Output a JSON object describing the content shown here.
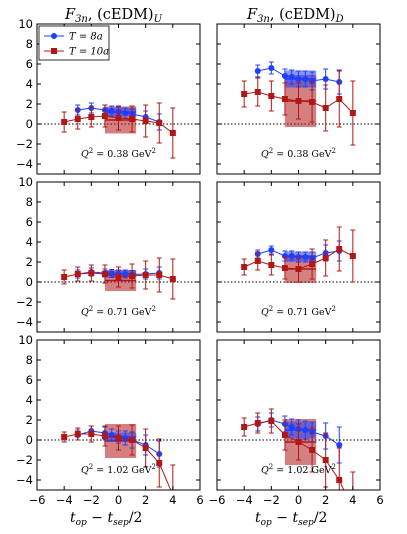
{
  "colors": {
    "T8": "#1f3fff",
    "T10": "#b01818"
  },
  "col_titles": [
    "F3n, (cEDM)U",
    "F3n, (cEDM)D"
  ],
  "xlabel": "top − tsep/2",
  "legend": [
    "T = 8a",
    "T = 10a"
  ],
  "chart_data": [
    {
      "type": "line",
      "row": 0,
      "col": 0,
      "annotation": "Q² = 0.38 GeV²",
      "xlim": [
        -6,
        6
      ],
      "ylim": [
        -5,
        10
      ],
      "series": [
        {
          "name": "T = 8a",
          "x": [
            -3,
            -2,
            -1,
            -0.5,
            0,
            0.5,
            1,
            2,
            3
          ],
          "y": [
            1.4,
            1.6,
            1.4,
            1.3,
            1.2,
            1.1,
            1.0,
            0.7,
            0.2
          ],
          "err": [
            0.5,
            0.5,
            0.5,
            0.5,
            0.5,
            0.5,
            0.5,
            0.6,
            0.8
          ]
        },
        {
          "name": "T = 10a",
          "x": [
            -4,
            -3,
            -2,
            -1,
            0,
            1,
            2,
            3,
            4
          ],
          "y": [
            0.2,
            0.5,
            0.7,
            0.8,
            0.6,
            0.5,
            0.3,
            0.1,
            -0.9
          ],
          "err": [
            1.0,
            1.0,
            1.0,
            1.1,
            1.2,
            1.3,
            1.6,
            2.0,
            2.5
          ]
        }
      ],
      "band_T8": {
        "x": [
          -1,
          1.3
        ],
        "y": 1.2,
        "h": 0.45
      },
      "band_T10": {
        "x": [
          -1,
          1.3
        ],
        "y": 0.4,
        "h": 1.35
      }
    },
    {
      "type": "line",
      "row": 0,
      "col": 1,
      "annotation": "Q² = 0.38 GeV²",
      "xlim": [
        -6,
        6
      ],
      "ylim": [
        -5,
        10
      ],
      "series": [
        {
          "name": "T = 8a",
          "x": [
            -3,
            -2,
            -1,
            -0.5,
            0,
            0.5,
            1,
            2,
            3
          ],
          "y": [
            5.3,
            5.6,
            4.8,
            4.7,
            4.5,
            4.5,
            4.3,
            4.5,
            4.2
          ],
          "err": [
            0.6,
            0.6,
            0.7,
            0.7,
            0.8,
            0.8,
            0.9,
            1.0,
            1.2
          ]
        },
        {
          "name": "T = 10a",
          "x": [
            -4,
            -3,
            -2,
            -1,
            0,
            1,
            2,
            3,
            4
          ],
          "y": [
            3.0,
            3.2,
            2.8,
            2.5,
            2.3,
            2.2,
            1.6,
            2.5,
            1.1
          ],
          "err": [
            1.3,
            1.4,
            1.5,
            1.6,
            1.8,
            2.0,
            2.3,
            2.8,
            3.2
          ]
        }
      ],
      "band_T8": {
        "x": [
          -1,
          1.3
        ],
        "y": 4.5,
        "h": 0.85
      },
      "band_T10": {
        "x": [
          -1,
          1.3
        ],
        "y": 2.3,
        "h": 2.6
      }
    },
    {
      "type": "line",
      "row": 1,
      "col": 0,
      "annotation": "Q² = 0.71 GeV²",
      "xlim": [
        -6,
        6
      ],
      "ylim": [
        -5,
        10
      ],
      "series": [
        {
          "name": "T = 8a",
          "x": [
            -3,
            -2,
            -1,
            -0.5,
            0,
            0.5,
            1,
            2,
            3
          ],
          "y": [
            0.8,
            1.0,
            0.9,
            0.85,
            0.8,
            0.8,
            0.75,
            0.8,
            0.9
          ],
          "err": [
            0.4,
            0.4,
            0.4,
            0.4,
            0.4,
            0.4,
            0.4,
            0.5,
            0.6
          ]
        },
        {
          "name": "T = 10a",
          "x": [
            -4,
            -3,
            -2,
            -1,
            0,
            1,
            2,
            3,
            4
          ],
          "y": [
            0.5,
            0.8,
            0.9,
            0.8,
            0.5,
            0.6,
            0.7,
            0.7,
            0.3
          ],
          "err": [
            0.7,
            0.7,
            0.8,
            0.9,
            1.0,
            1.2,
            1.4,
            1.7,
            2.0
          ]
        }
      ],
      "band_T8": {
        "x": [
          -1,
          1.3
        ],
        "y": 0.8,
        "h": 0.35
      },
      "band_T10": {
        "x": [
          -1,
          1.3
        ],
        "y": 0.15,
        "h": 1.05
      }
    },
    {
      "type": "line",
      "row": 1,
      "col": 1,
      "annotation": "Q² = 0.71 GeV²",
      "xlim": [
        -6,
        6
      ],
      "ylim": [
        -5,
        10
      ],
      "series": [
        {
          "name": "T = 8a",
          "x": [
            -3,
            -2,
            -1,
            -0.5,
            0,
            0.5,
            1,
            2,
            3
          ],
          "y": [
            2.8,
            3.2,
            2.6,
            2.6,
            2.5,
            2.5,
            2.4,
            2.9,
            3.1
          ],
          "err": [
            0.4,
            0.4,
            0.5,
            0.5,
            0.5,
            0.5,
            0.6,
            0.8,
            1.0
          ]
        },
        {
          "name": "T = 10a",
          "x": [
            -4,
            -3,
            -2,
            -1,
            0,
            1,
            2,
            3,
            4
          ],
          "y": [
            1.5,
            2.1,
            1.7,
            1.4,
            1.3,
            1.8,
            2.4,
            3.3,
            2.6
          ],
          "err": [
            0.8,
            0.9,
            1.0,
            1.1,
            1.3,
            1.5,
            1.8,
            2.2,
            2.6
          ]
        }
      ],
      "band_T8": {
        "x": [
          -1,
          1.3
        ],
        "y": 2.55,
        "h": 0.5
      },
      "band_T10": {
        "x": [
          -1,
          1.3
        ],
        "y": 1.3,
        "h": 1.4
      }
    },
    {
      "type": "line",
      "row": 2,
      "col": 0,
      "annotation": "Q² = 1.02 GeV²",
      "xlim": [
        -6,
        6
      ],
      "ylim": [
        -5,
        10
      ],
      "series": [
        {
          "name": "T = 8a",
          "x": [
            -3,
            -2,
            -1,
            -0.5,
            0,
            0.5,
            1,
            2,
            3
          ],
          "y": [
            0.5,
            0.9,
            0.7,
            0.5,
            0.3,
            0.2,
            0.0,
            -0.5,
            -1.4
          ],
          "err": [
            0.5,
            0.5,
            0.6,
            0.6,
            0.6,
            0.7,
            0.8,
            1.0,
            1.3
          ]
        },
        {
          "name": "T = 10a",
          "x": [
            -4,
            -3,
            -2,
            -1,
            0,
            1,
            2,
            3,
            4
          ],
          "y": [
            0.3,
            0.6,
            0.6,
            0.4,
            0.2,
            0.0,
            -0.8,
            -2.3,
            -5.5
          ],
          "err": [
            0.5,
            0.6,
            0.8,
            1.0,
            1.2,
            1.5,
            1.9,
            2.4,
            3.0
          ]
        }
      ],
      "band_T8": {
        "x": [
          -1,
          1.3
        ],
        "y": 0.3,
        "h": 0.45
      },
      "band_T10": {
        "x": [
          -1,
          1.3
        ],
        "y": -0.1,
        "h": 1.7
      }
    },
    {
      "type": "line",
      "row": 2,
      "col": 1,
      "annotation": "Q² = 1.02 GeV²",
      "xlim": [
        -6,
        6
      ],
      "ylim": [
        -5,
        10
      ],
      "series": [
        {
          "name": "T = 8a",
          "x": [
            -3,
            -2,
            -1,
            -0.5,
            0,
            0.5,
            1,
            2,
            3
          ],
          "y": [
            1.6,
            2.0,
            1.6,
            1.3,
            1.1,
            1.0,
            0.8,
            0.4,
            -0.5
          ],
          "err": [
            0.7,
            0.7,
            0.8,
            0.8,
            0.9,
            0.9,
            1.0,
            1.3,
            1.8
          ]
        },
        {
          "name": "T = 10a",
          "x": [
            -4,
            -3,
            -2,
            -1,
            0,
            1,
            2,
            3,
            4
          ],
          "y": [
            1.3,
            1.7,
            1.9,
            0.5,
            -0.2,
            -1.0,
            -2.0,
            -4.0,
            -7.0
          ],
          "err": [
            0.9,
            1.0,
            1.2,
            1.5,
            1.8,
            2.2,
            2.7,
            3.2,
            3.8
          ]
        }
      ],
      "band_T8": {
        "x": [
          -1,
          1.3
        ],
        "y": 1.0,
        "h": 0.85
      },
      "band_T10": {
        "x": [
          -1,
          1.3
        ],
        "y": -0.2,
        "h": 2.3
      }
    }
  ],
  "axes": {
    "xticks": [
      -6,
      -4,
      -2,
      0,
      2,
      4,
      6
    ],
    "yticks": [
      -4,
      -2,
      0,
      2,
      4,
      6,
      8,
      10
    ]
  }
}
